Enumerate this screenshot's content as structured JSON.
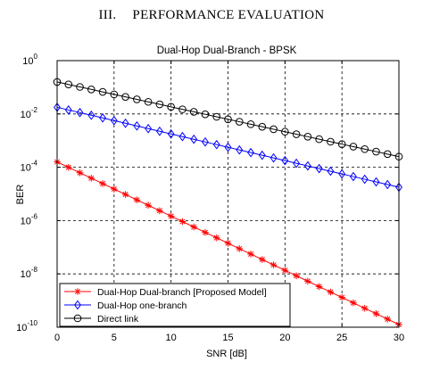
{
  "heading": {
    "number": "III.",
    "text": "PERFORMANCE EVALUATION"
  },
  "chart_data": {
    "type": "line",
    "title": "Dual-Hop Dual-Branch - BPSK",
    "xlabel": "SNR [dB]",
    "ylabel": "BER",
    "xlim": [
      0,
      30
    ],
    "ylim_log10": [
      -10,
      0
    ],
    "yscale": "log",
    "grid": true,
    "legend_position": "bottom-left",
    "x_ticks": [
      "0",
      "5",
      "10",
      "15",
      "20",
      "25",
      "30"
    ],
    "x_tick_values": [
      0,
      5,
      10,
      15,
      20,
      25,
      30
    ],
    "y_ticks": [
      {
        "base": "10",
        "exp": "0",
        "value": 0
      },
      {
        "base": "10",
        "exp": "-2",
        "value": -2
      },
      {
        "base": "10",
        "exp": "-4",
        "value": -4
      },
      {
        "base": "10",
        "exp": "-6",
        "value": -6
      },
      {
        "base": "10",
        "exp": "-8",
        "value": -8
      },
      {
        "base": "10",
        "exp": "-10",
        "value": -10
      }
    ],
    "x": [
      0,
      1,
      2,
      3,
      4,
      5,
      6,
      7,
      8,
      9,
      10,
      11,
      12,
      13,
      14,
      15,
      16,
      17,
      18,
      19,
      20,
      21,
      22,
      23,
      24,
      25,
      26,
      27,
      28,
      29,
      30
    ],
    "series": [
      {
        "name": "Dual-Hop Dual-branch [Proposed Model]",
        "color": "#ff0000",
        "marker": "star",
        "log10_start": -3.8,
        "log10_end": -9.9
      },
      {
        "name": "Dual-Hop one-branch",
        "color": "#0000ff",
        "marker": "diamond",
        "log10_start": -1.75,
        "log10_end": -4.75
      },
      {
        "name": "Direct link",
        "color": "#000000",
        "marker": "circle",
        "log10_start": -0.8,
        "log10_end": -3.6
      }
    ]
  }
}
